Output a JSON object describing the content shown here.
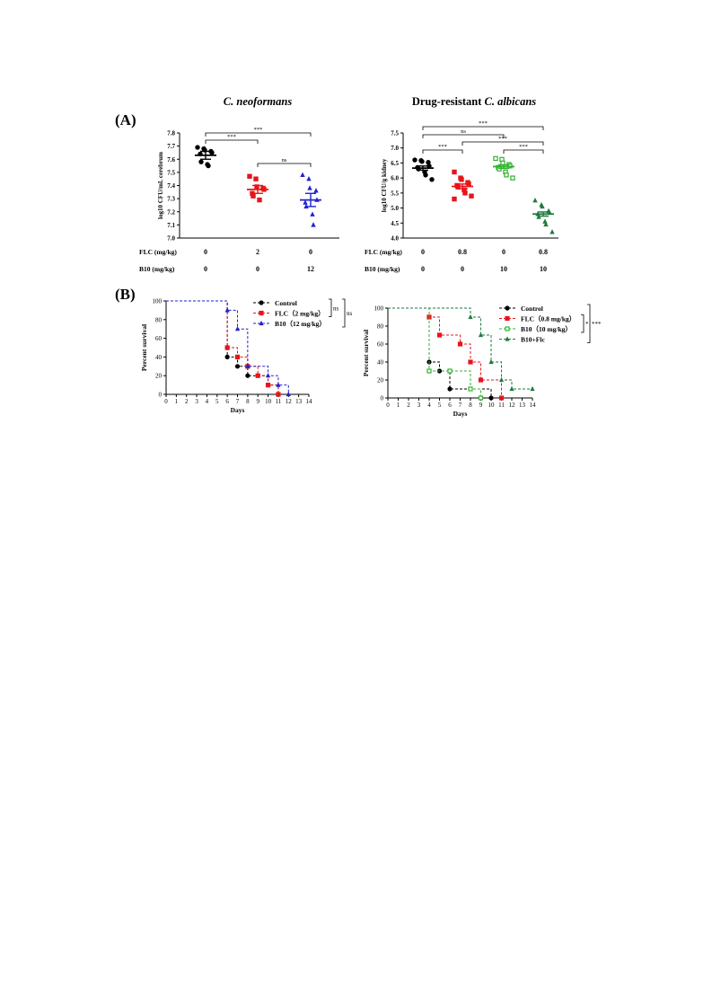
{
  "panel_labels": {
    "a": "(A)",
    "b": "(B)"
  },
  "row_labels": {
    "flc": "FLC (mg/kg)",
    "b10": "B10 (mg/kg)"
  },
  "colors": {
    "black": "#000000",
    "red": "#e8141b",
    "blue": "#1f22d6",
    "lightgreen": "#33b233",
    "darkgreen": "#1e7a3c"
  },
  "chart_data": [
    {
      "type": "scatter",
      "title": "C. neoformans",
      "ylabel": "log10 CFU/mL cerebrum",
      "ylim": [
        7.0,
        7.8
      ],
      "yticks": [
        "7.0",
        "7.1",
        "7.2",
        "7.3",
        "7.4",
        "7.5",
        "7.6",
        "7.7",
        "7.8"
      ],
      "groups": [
        {
          "flc": "0",
          "b10": "0",
          "color": "black",
          "marker": "circle",
          "mean": 7.63,
          "sem": 0.03,
          "points": [
            7.69,
            7.68,
            7.67,
            7.66,
            7.65,
            7.64,
            7.58,
            7.56,
            7.55
          ]
        },
        {
          "flc": "2",
          "b10": "0",
          "color": "red",
          "marker": "square",
          "mean": 7.37,
          "sem": 0.03,
          "points": [
            7.47,
            7.45,
            7.39,
            7.38,
            7.37,
            7.34,
            7.32,
            7.29
          ]
        },
        {
          "flc": "0",
          "b10": "12",
          "color": "blue",
          "marker": "triangle",
          "mean": 7.29,
          "sem": 0.05,
          "points": [
            7.48,
            7.45,
            7.38,
            7.36,
            7.29,
            7.27,
            7.24,
            7.18,
            7.1
          ]
        }
      ],
      "comparisons": [
        {
          "from": 0,
          "to": 1,
          "label": "***",
          "level": 0
        },
        {
          "from": 1,
          "to": 2,
          "label": "ns",
          "level": 0
        },
        {
          "from": 0,
          "to": 2,
          "label": "***",
          "level": 1
        }
      ]
    },
    {
      "type": "scatter",
      "title": "Drug-resistant  C. albicans",
      "ylabel": "log10 CFU/g kidney",
      "ylim": [
        4.0,
        7.5
      ],
      "yticks": [
        "4.0",
        "4.5",
        "5.0",
        "5.5",
        "6.0",
        "6.5",
        "7.0",
        "7.5"
      ],
      "groups": [
        {
          "flc": "0",
          "b10": "0",
          "color": "black",
          "marker": "circle",
          "mean": 6.33,
          "sem": 0.07,
          "points": [
            6.6,
            6.58,
            6.55,
            6.52,
            6.4,
            6.35,
            6.3,
            6.2,
            6.1,
            5.95
          ]
        },
        {
          "flc": "0.8",
          "b10": "0",
          "color": "red",
          "marker": "square",
          "mean": 5.72,
          "sem": 0.08,
          "points": [
            6.2,
            6.0,
            5.95,
            5.85,
            5.8,
            5.75,
            5.7,
            5.6,
            5.5,
            5.4,
            5.3
          ]
        },
        {
          "flc": "0",
          "b10": "10",
          "color": "lightgreen",
          "marker": "open-square",
          "mean": 6.38,
          "sem": 0.06,
          "points": [
            6.65,
            6.62,
            6.5,
            6.45,
            6.4,
            6.35,
            6.3,
            6.2,
            6.1,
            6.0
          ]
        },
        {
          "flc": "0.8",
          "b10": "10",
          "color": "darkgreen",
          "marker": "triangle",
          "mean": 4.8,
          "sem": 0.07,
          "points": [
            5.25,
            5.1,
            5.05,
            4.9,
            4.85,
            4.8,
            4.7,
            4.55,
            4.45,
            4.2
          ]
        }
      ],
      "comparisons": [
        {
          "from": 0,
          "to": 1,
          "label": "***",
          "level": 0
        },
        {
          "from": 2,
          "to": 3,
          "label": "***",
          "level": 0
        },
        {
          "from": 1,
          "to": 3,
          "label": "***",
          "level": 1
        },
        {
          "from": 0,
          "to": 2,
          "label": "ns",
          "level": 2
        },
        {
          "from": 0,
          "to": 3,
          "label": "***",
          "level": 3
        }
      ]
    },
    {
      "type": "line",
      "subtype": "step-survival",
      "xlabel": "Days",
      "ylabel": "Percent survival",
      "xlim": [
        0,
        14
      ],
      "ylim": [
        0,
        100
      ],
      "xticks": [
        "0",
        "1",
        "2",
        "3",
        "4",
        "5",
        "6",
        "7",
        "8",
        "9",
        "10",
        "11",
        "12",
        "13",
        "14"
      ],
      "yticks": [
        "0",
        "20",
        "40",
        "60",
        "80",
        "100"
      ],
      "series": [
        {
          "name": "Control",
          "color": "black",
          "marker": "circle",
          "steps": [
            [
              0,
              100
            ],
            [
              6,
              40
            ],
            [
              7,
              30
            ],
            [
              8,
              20
            ],
            [
              10,
              10
            ],
            [
              11,
              0
            ]
          ]
        },
        {
          "name": "FLC（2  mg/kg）",
          "color": "red",
          "marker": "square",
          "steps": [
            [
              0,
              100
            ],
            [
              6,
              50
            ],
            [
              7,
              40
            ],
            [
              8,
              30
            ],
            [
              9,
              20
            ],
            [
              10,
              10
            ],
            [
              11,
              0
            ]
          ]
        },
        {
          "name": "B10（12 mg/kg）",
          "color": "blue",
          "marker": "triangle",
          "steps": [
            [
              0,
              100
            ],
            [
              6,
              90
            ],
            [
              7,
              70
            ],
            [
              8,
              30
            ],
            [
              10,
              20
            ],
            [
              11,
              10
            ],
            [
              12,
              0
            ]
          ]
        }
      ],
      "significance": [
        "ns",
        "ns"
      ]
    },
    {
      "type": "line",
      "subtype": "step-survival",
      "xlabel": "Days",
      "ylabel": "Percent survival",
      "xlim": [
        0,
        14
      ],
      "ylim": [
        0,
        100
      ],
      "xticks": [
        "0",
        "1",
        "2",
        "3",
        "4",
        "5",
        "6",
        "7",
        "8",
        "9",
        "10",
        "11",
        "12",
        "13",
        "14"
      ],
      "yticks": [
        "0",
        "20",
        "40",
        "60",
        "80",
        "100"
      ],
      "series": [
        {
          "name": "Control",
          "color": "black",
          "marker": "circle",
          "steps": [
            [
              0,
              100
            ],
            [
              4,
              40
            ],
            [
              5,
              30
            ],
            [
              6,
              10
            ],
            [
              10,
              0
            ]
          ]
        },
        {
          "name": "FLC（0.8  mg/kg）",
          "color": "red",
          "marker": "square",
          "steps": [
            [
              0,
              100
            ],
            [
              4,
              90
            ],
            [
              5,
              70
            ],
            [
              7,
              60
            ],
            [
              8,
              40
            ],
            [
              9,
              20
            ],
            [
              11,
              0
            ]
          ]
        },
        {
          "name": "B10（10 mg/kg）",
          "color": "lightgreen",
          "marker": "open-square",
          "steps": [
            [
              0,
              100
            ],
            [
              4,
              30
            ],
            [
              6,
              30
            ],
            [
              8,
              10
            ],
            [
              9,
              0
            ]
          ]
        },
        {
          "name": "B10+Flc",
          "color": "darkgreen",
          "marker": "triangle",
          "steps": [
            [
              0,
              100
            ],
            [
              8,
              90
            ],
            [
              9,
              70
            ],
            [
              10,
              40
            ],
            [
              11,
              20
            ],
            [
              12,
              10
            ],
            [
              14,
              10
            ]
          ]
        }
      ],
      "significance": [
        "*",
        "***"
      ]
    }
  ]
}
